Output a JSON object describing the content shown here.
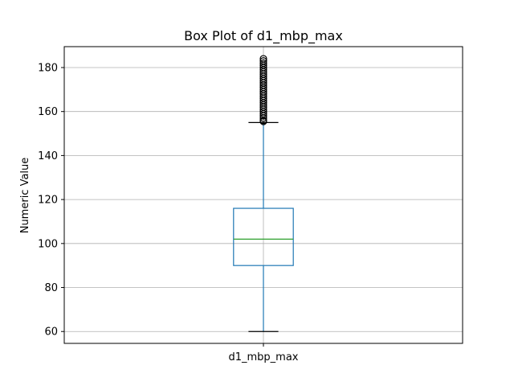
{
  "chart_data": {
    "type": "box",
    "title": "Box Plot of d1_mbp_max",
    "xlabel": "",
    "ylabel": "Numeric Value",
    "categories": [
      "d1_mbp_max"
    ],
    "ylim": [
      54.6,
      189.5
    ],
    "yticks": [
      60,
      80,
      100,
      120,
      140,
      160,
      180
    ],
    "grid": true,
    "boxes": [
      {
        "name": "d1_mbp_max",
        "whisker_low": 60,
        "q1": 90,
        "median": 102,
        "q3": 116,
        "whisker_high": 155,
        "outliers": [
          155.5,
          156,
          157,
          158,
          159,
          160,
          161,
          162,
          163,
          164,
          165,
          166,
          167,
          168,
          169,
          170,
          171,
          172,
          173,
          174,
          175,
          176,
          177,
          178,
          179,
          180,
          181,
          182,
          183,
          184
        ]
      }
    ],
    "colors": {
      "box": "#1f77b4",
      "median": "#2ca02c",
      "caps": "#000000",
      "grid": "#b0b0b0",
      "outlier": "#000000"
    }
  }
}
